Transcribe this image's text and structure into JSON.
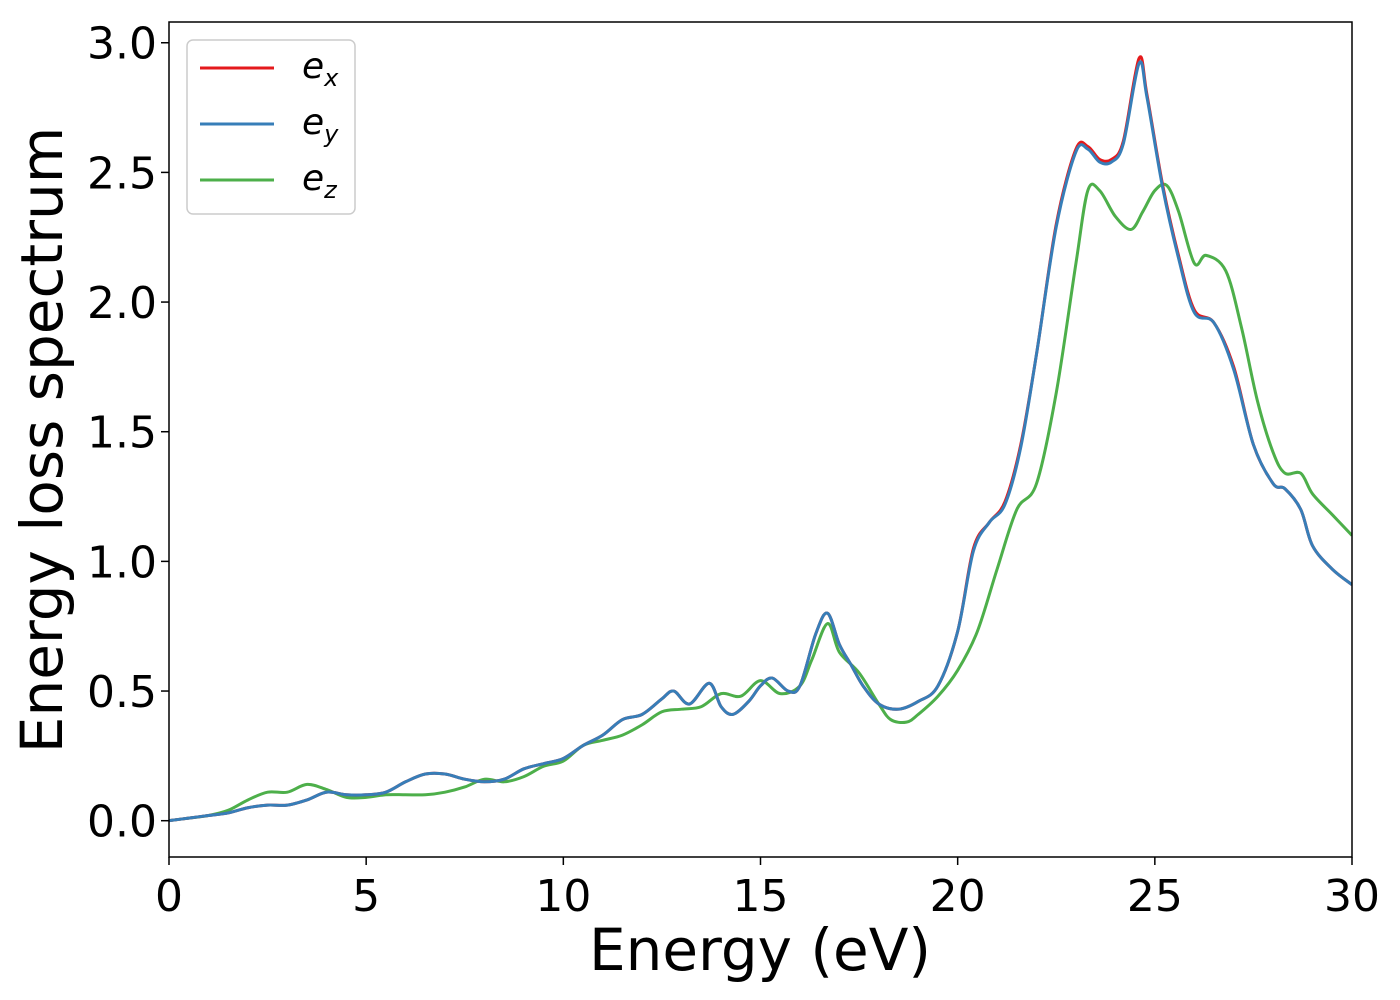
{
  "chart_data": {
    "type": "line",
    "title": "",
    "xlabel": "Energy (eV)",
    "ylabel": "Energy loss spectrum",
    "xlim": [
      0,
      30
    ],
    "ylim": [
      -0.14,
      3.08
    ],
    "xticks": [
      "0",
      "5",
      "10",
      "15",
      "20",
      "25",
      "30"
    ],
    "yticks": [
      "0.0",
      "0.5",
      "1.0",
      "1.5",
      "2.0",
      "2.5",
      "3.0"
    ],
    "grid": false,
    "legend_position": "upper-left",
    "series": [
      {
        "name": "e",
        "subscript": "x",
        "color": "#e41a1c",
        "x": [
          0,
          0.5,
          1,
          1.5,
          2,
          2.5,
          3,
          3.5,
          4,
          4.5,
          5,
          5.5,
          6,
          6.5,
          7,
          7.5,
          8,
          8.5,
          9,
          9.5,
          10,
          10.5,
          11,
          11.5,
          12,
          12.5,
          12.8,
          13.2,
          13.7,
          14.0,
          14.3,
          14.7,
          15.0,
          15.3,
          15.7,
          16.0,
          16.4,
          16.7,
          17.0,
          17.3,
          17.6,
          18.0,
          18.5,
          19.0,
          19.5,
          20.0,
          20.4,
          20.8,
          21.2,
          21.6,
          22.0,
          22.5,
          23.0,
          23.3,
          23.6,
          23.9,
          24.2,
          24.6,
          24.8,
          25.2,
          25.6,
          26.0,
          26.5,
          27.0,
          27.5,
          28.0,
          28.3,
          28.7,
          29.0,
          29.5,
          30.0
        ],
        "y": [
          0.0,
          0.01,
          0.02,
          0.03,
          0.05,
          0.06,
          0.06,
          0.08,
          0.11,
          0.1,
          0.1,
          0.11,
          0.15,
          0.18,
          0.18,
          0.16,
          0.15,
          0.16,
          0.2,
          0.22,
          0.24,
          0.29,
          0.33,
          0.39,
          0.41,
          0.47,
          0.5,
          0.45,
          0.53,
          0.44,
          0.41,
          0.46,
          0.52,
          0.55,
          0.5,
          0.52,
          0.72,
          0.8,
          0.68,
          0.6,
          0.52,
          0.45,
          0.43,
          0.46,
          0.52,
          0.73,
          1.05,
          1.15,
          1.23,
          1.45,
          1.8,
          2.3,
          2.59,
          2.6,
          2.55,
          2.55,
          2.62,
          2.94,
          2.8,
          2.45,
          2.18,
          1.97,
          1.92,
          1.75,
          1.45,
          1.3,
          1.28,
          1.2,
          1.06,
          0.97,
          0.91
        ]
      },
      {
        "name": "e",
        "subscript": "y",
        "color": "#377eb8",
        "x": [
          0,
          0.5,
          1,
          1.5,
          2,
          2.5,
          3,
          3.5,
          4,
          4.5,
          5,
          5.5,
          6,
          6.5,
          7,
          7.5,
          8,
          8.5,
          9,
          9.5,
          10,
          10.5,
          11,
          11.5,
          12,
          12.5,
          12.8,
          13.2,
          13.7,
          14.0,
          14.3,
          14.7,
          15.0,
          15.3,
          15.7,
          16.0,
          16.4,
          16.7,
          17.0,
          17.3,
          17.6,
          18.0,
          18.5,
          19.0,
          19.5,
          20.0,
          20.4,
          20.8,
          21.2,
          21.6,
          22.0,
          22.5,
          23.0,
          23.3,
          23.6,
          23.9,
          24.2,
          24.6,
          24.8,
          25.2,
          25.6,
          26.0,
          26.5,
          27.0,
          27.5,
          28.0,
          28.3,
          28.7,
          29.0,
          29.5,
          30.0
        ],
        "y": [
          0.0,
          0.01,
          0.02,
          0.03,
          0.05,
          0.06,
          0.06,
          0.08,
          0.11,
          0.1,
          0.1,
          0.11,
          0.15,
          0.18,
          0.18,
          0.16,
          0.15,
          0.16,
          0.2,
          0.22,
          0.24,
          0.29,
          0.33,
          0.39,
          0.41,
          0.47,
          0.5,
          0.45,
          0.53,
          0.44,
          0.41,
          0.46,
          0.52,
          0.55,
          0.5,
          0.52,
          0.72,
          0.8,
          0.68,
          0.6,
          0.52,
          0.45,
          0.43,
          0.46,
          0.52,
          0.73,
          1.04,
          1.15,
          1.22,
          1.44,
          1.8,
          2.29,
          2.58,
          2.59,
          2.54,
          2.54,
          2.61,
          2.92,
          2.79,
          2.44,
          2.17,
          1.96,
          1.92,
          1.74,
          1.45,
          1.3,
          1.28,
          1.2,
          1.06,
          0.97,
          0.91
        ]
      },
      {
        "name": "e",
        "subscript": "z",
        "color": "#4daf4a",
        "x": [
          0,
          0.5,
          1,
          1.5,
          2,
          2.5,
          3,
          3.5,
          4,
          4.5,
          5,
          5.5,
          6,
          6.5,
          7,
          7.5,
          8,
          8.5,
          9,
          9.5,
          10,
          10.5,
          11,
          11.5,
          12,
          12.5,
          13.0,
          13.5,
          14.0,
          14.5,
          15.0,
          15.5,
          16.0,
          16.3,
          16.7,
          17.0,
          17.5,
          18.0,
          18.3,
          18.7,
          19.0,
          19.5,
          20.0,
          20.5,
          21.0,
          21.5,
          22.0,
          22.5,
          23.0,
          23.3,
          23.6,
          24.0,
          24.4,
          24.7,
          25.0,
          25.3,
          25.6,
          26.0,
          26.3,
          26.8,
          27.2,
          27.6,
          28.0,
          28.3,
          28.7,
          29.0,
          29.5,
          30.0
        ],
        "y": [
          0.0,
          0.01,
          0.02,
          0.04,
          0.08,
          0.11,
          0.11,
          0.14,
          0.12,
          0.09,
          0.09,
          0.1,
          0.1,
          0.1,
          0.11,
          0.13,
          0.16,
          0.15,
          0.17,
          0.21,
          0.23,
          0.29,
          0.31,
          0.33,
          0.37,
          0.42,
          0.43,
          0.44,
          0.49,
          0.48,
          0.54,
          0.49,
          0.52,
          0.62,
          0.76,
          0.65,
          0.57,
          0.45,
          0.39,
          0.38,
          0.41,
          0.48,
          0.58,
          0.73,
          0.97,
          1.2,
          1.3,
          1.65,
          2.15,
          2.43,
          2.43,
          2.33,
          2.28,
          2.35,
          2.43,
          2.45,
          2.35,
          2.15,
          2.18,
          2.12,
          1.9,
          1.62,
          1.42,
          1.34,
          1.34,
          1.26,
          1.18,
          1.1
        ]
      }
    ]
  }
}
